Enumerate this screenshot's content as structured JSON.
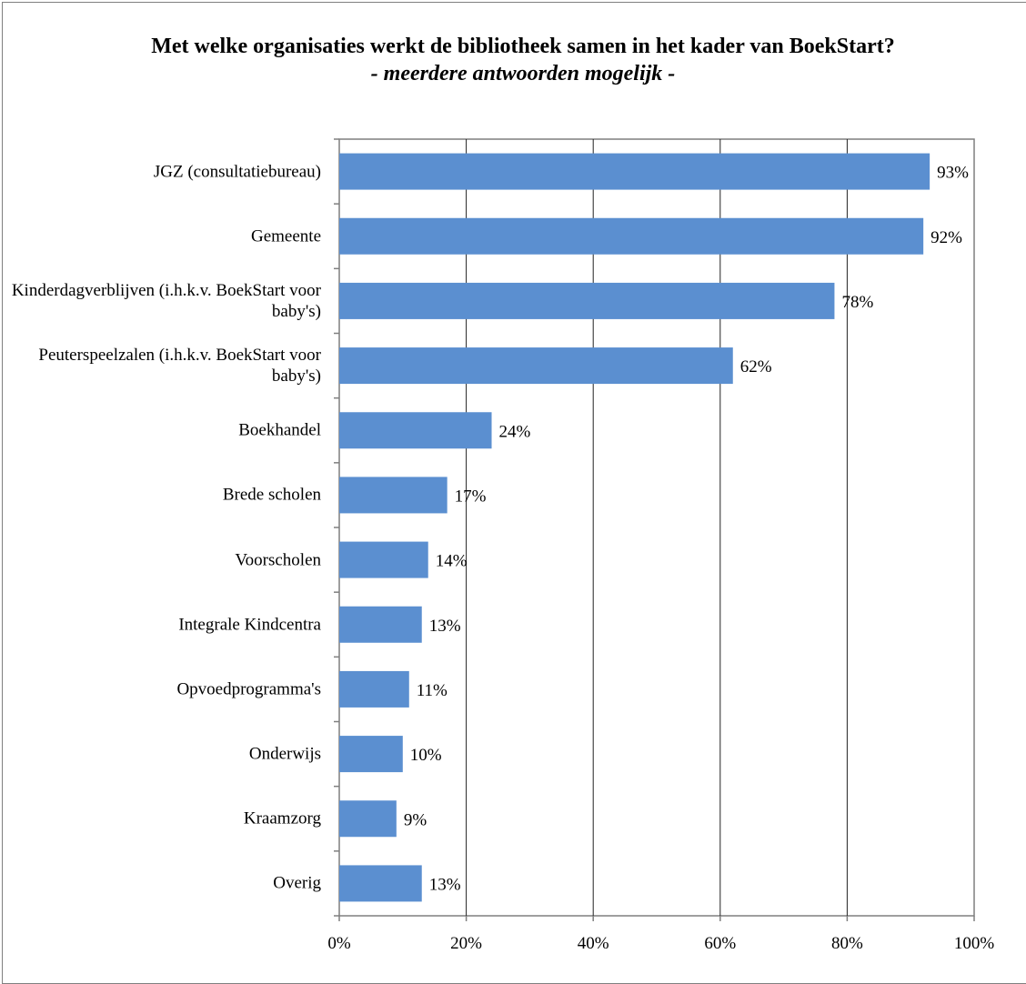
{
  "chart_data": {
    "type": "bar",
    "orientation": "horizontal",
    "title": "Met welke organisaties werkt de bibliotheek samen in het kader van BoekStart?",
    "subtitle": "- meerdere antwoorden mogelijk -",
    "categories": [
      "JGZ (consultatiebureau)",
      "Gemeente",
      "Kinderdagverblijven (i.h.k.v. BoekStart voor baby's)",
      "Peuterspeelzalen (i.h.k.v. BoekStart voor baby's)",
      "Boekhandel",
      "Brede scholen",
      "Voorscholen",
      "Integrale Kindcentra",
      "Opvoedprogramma's",
      "Onderwijs",
      "Kraamzorg",
      "Overig"
    ],
    "values": [
      93,
      92,
      78,
      62,
      24,
      17,
      14,
      13,
      11,
      10,
      9,
      13
    ],
    "data_labels": [
      "93%",
      "92%",
      "78%",
      "62%",
      "24%",
      "17%",
      "14%",
      "13%",
      "11%",
      "10%",
      "9%",
      "13%"
    ],
    "x_ticks": [
      "0%",
      "20%",
      "40%",
      "60%",
      "80%",
      "100%"
    ],
    "xlim": [
      0,
      100
    ],
    "grid": "vertical",
    "legend": "none",
    "bar_color": "#5b8fd0",
    "grid_color": "#222222",
    "frame_color": "#7f7f7f"
  }
}
